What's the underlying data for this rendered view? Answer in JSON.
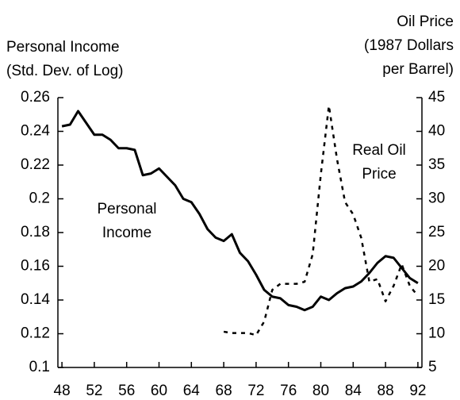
{
  "chart_data": {
    "type": "line",
    "y_axis_title": [
      "Personal Income",
      "(Std. Dev. of Log)"
    ],
    "y2_axis_title": [
      "Oil Price",
      "(1987 Dollars",
      "per Barrel)"
    ],
    "annotations": [
      {
        "lines": [
          "Personal",
          "Income"
        ]
      },
      {
        "lines": [
          "Real Oil",
          "Price"
        ]
      }
    ],
    "x": [
      48,
      49,
      50,
      51,
      52,
      53,
      54,
      55,
      56,
      57,
      58,
      59,
      60,
      61,
      62,
      63,
      64,
      65,
      66,
      67,
      68,
      69,
      70,
      71,
      72,
      73,
      74,
      75,
      76,
      77,
      78,
      79,
      80,
      81,
      82,
      83,
      84,
      85,
      86,
      87,
      88,
      89,
      90,
      91,
      92
    ],
    "series": [
      {
        "color": "#000000",
        "style": "solid",
        "values": [
          0.243,
          0.244,
          0.252,
          0.245,
          0.238,
          0.238,
          0.235,
          0.23,
          0.23,
          0.229,
          0.214,
          0.215,
          0.218,
          0.213,
          0.208,
          0.2,
          0.198,
          0.191,
          0.182,
          0.177,
          0.175,
          0.179,
          0.168,
          0.163,
          0.155,
          0.146,
          0.142,
          0.141,
          0.137,
          0.136,
          0.134,
          0.136,
          0.142,
          0.14,
          0.144,
          0.147,
          0.148,
          0.151,
          0.156,
          0.162,
          0.166,
          0.165,
          0.159,
          0.153,
          0.15
        ]
      },
      {
        "color": "#000000",
        "style": "dashed",
        "axis": "y2",
        "values": [
          null,
          null,
          null,
          null,
          null,
          null,
          null,
          null,
          null,
          null,
          null,
          null,
          null,
          null,
          null,
          null,
          null,
          null,
          null,
          null,
          10.3,
          10.1,
          10.1,
          10.1,
          9.8,
          11.8,
          16.5,
          17.4,
          17.4,
          17.4,
          17.7,
          21.8,
          33.6,
          43.8,
          35.9,
          29.5,
          27.7,
          24.2,
          17.7,
          18.1,
          14.8,
          17.1,
          20.3,
          17.1,
          15.6
        ]
      }
    ],
    "xlim": [
      47.5,
      92.5
    ],
    "xticks": [
      48,
      52,
      56,
      60,
      64,
      68,
      72,
      76,
      80,
      84,
      88,
      92
    ],
    "ylim": [
      0.1,
      0.26
    ],
    "yticks": [
      0.1,
      0.12,
      0.14,
      0.16,
      0.18,
      0.2,
      0.22,
      0.24,
      0.26
    ],
    "y2lim": [
      5,
      45
    ],
    "y2ticks": [
      5,
      10,
      15,
      20,
      25,
      30,
      35,
      40,
      45
    ],
    "grid": false
  }
}
